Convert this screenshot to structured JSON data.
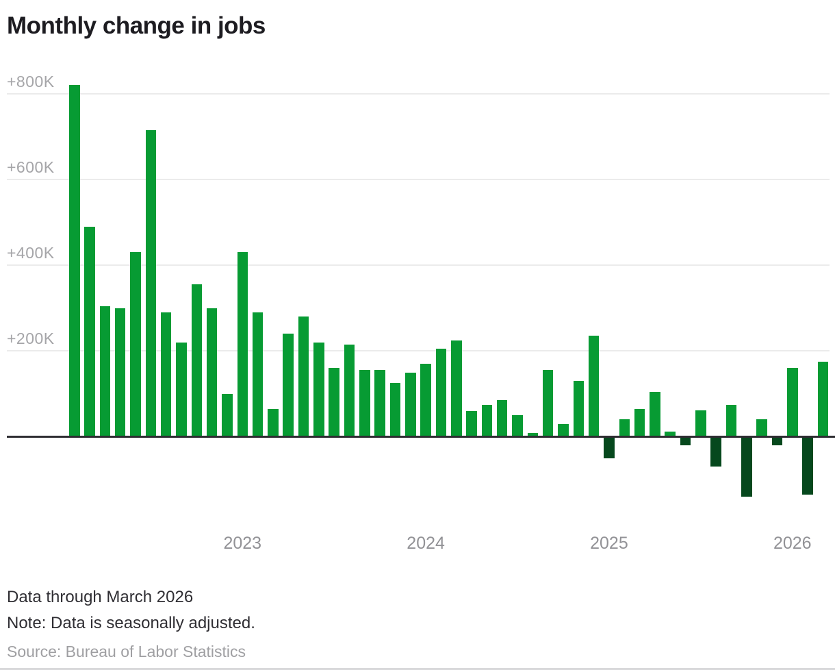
{
  "title": "Monthly change in jobs",
  "notes": {
    "line1": "Data through March 2026",
    "line2": "Note: Data is seasonally adjusted.",
    "source": "Source: Bureau of Labor Statistics"
  },
  "colors": {
    "positive_bar": "#079b33",
    "negative_bar": "#06481d",
    "gridline": "#ebebeb",
    "baseline": "#2e2d32",
    "axis_text": "#a5a5a8",
    "title_text": "#1d1c21"
  },
  "chart_data": {
    "type": "bar",
    "title": "Monthly change in jobs",
    "unit": "thousands of jobs",
    "ylabel": "",
    "xlabel": "",
    "ylim": [
      -200,
      900
    ],
    "grid": "horizontal",
    "y_ticks": [
      {
        "label": "+800K",
        "value": 800
      },
      {
        "label": "+600K",
        "value": 600
      },
      {
        "label": "+400K",
        "value": 400
      },
      {
        "label": "+200K",
        "value": 200
      }
    ],
    "x_year_ticks": [
      {
        "label": "2023",
        "month_index": 11
      },
      {
        "label": "2024",
        "month_index": 23
      },
      {
        "label": "2025",
        "month_index": 35
      },
      {
        "label": "2026",
        "month_index": 47
      }
    ],
    "series_name": "Monthly change in jobs (thousands)",
    "points": [
      {
        "m": "Feb 2022",
        "v": 820
      },
      {
        "m": "Mar 2022",
        "v": 490
      },
      {
        "m": "Apr 2022",
        "v": 305
      },
      {
        "m": "May 2022",
        "v": 300
      },
      {
        "m": "Jun 2022",
        "v": 430
      },
      {
        "m": "Jul 2022",
        "v": 715
      },
      {
        "m": "Aug 2022",
        "v": 290
      },
      {
        "m": "Sep 2022",
        "v": 220
      },
      {
        "m": "Oct 2022",
        "v": 355
      },
      {
        "m": "Nov 2022",
        "v": 300
      },
      {
        "m": "Dec 2022",
        "v": 100
      },
      {
        "m": "Jan 2023",
        "v": 430
      },
      {
        "m": "Feb 2023",
        "v": 290
      },
      {
        "m": "Mar 2023",
        "v": 65
      },
      {
        "m": "Apr 2023",
        "v": 240
      },
      {
        "m": "May 2023",
        "v": 280
      },
      {
        "m": "Jun 2023",
        "v": 220
      },
      {
        "m": "Jul 2023",
        "v": 160
      },
      {
        "m": "Aug 2023",
        "v": 215
      },
      {
        "m": "Sep 2023",
        "v": 155
      },
      {
        "m": "Oct 2023",
        "v": 155
      },
      {
        "m": "Nov 2023",
        "v": 125
      },
      {
        "m": "Dec 2023",
        "v": 150
      },
      {
        "m": "Jan 2024",
        "v": 170
      },
      {
        "m": "Feb 2024",
        "v": 205
      },
      {
        "m": "Mar 2024",
        "v": 225
      },
      {
        "m": "Apr 2024",
        "v": 60
      },
      {
        "m": "May 2024",
        "v": 75
      },
      {
        "m": "Jun 2024",
        "v": 85
      },
      {
        "m": "Jul 2024",
        "v": 50
      },
      {
        "m": "Aug 2024",
        "v": 8
      },
      {
        "m": "Sep 2024",
        "v": 155
      },
      {
        "m": "Oct 2024",
        "v": 30
      },
      {
        "m": "Nov 2024",
        "v": 130
      },
      {
        "m": "Dec 2024",
        "v": 235
      },
      {
        "m": "Jan 2025",
        "v": -50
      },
      {
        "m": "Feb 2025",
        "v": 40
      },
      {
        "m": "Mar 2025",
        "v": 65
      },
      {
        "m": "Apr 2025",
        "v": 105
      },
      {
        "m": "May 2025",
        "v": 12
      },
      {
        "m": "Jun 2025",
        "v": -20
      },
      {
        "m": "Jul 2025",
        "v": 62
      },
      {
        "m": "Aug 2025",
        "v": -70
      },
      {
        "m": "Sep 2025",
        "v": 75
      },
      {
        "m": "Oct 2025",
        "v": -140
      },
      {
        "m": "Nov 2025",
        "v": 40
      },
      {
        "m": "Dec 2025",
        "v": -20
      },
      {
        "m": "Jan 2026",
        "v": 160
      },
      {
        "m": "Feb 2026",
        "v": -135
      },
      {
        "m": "Mar 2026",
        "v": 175
      }
    ]
  }
}
